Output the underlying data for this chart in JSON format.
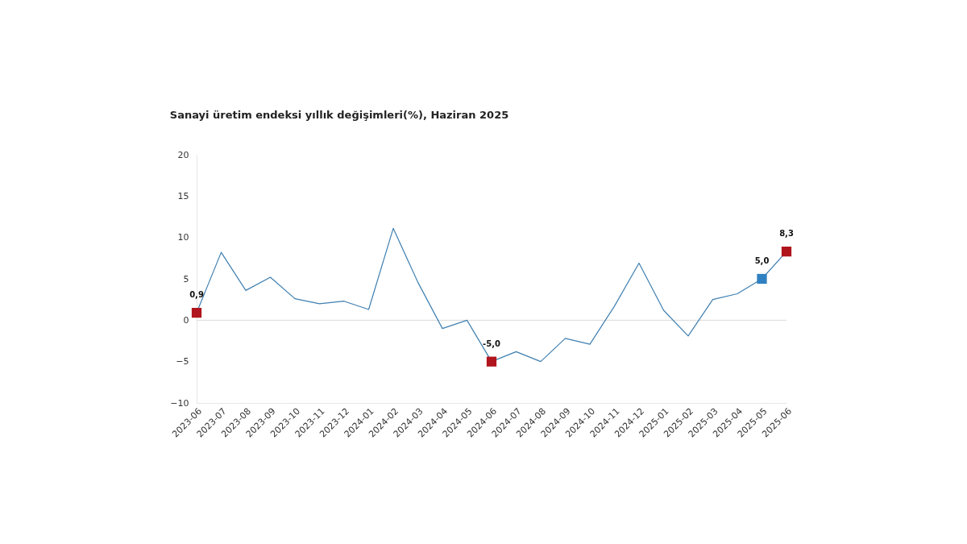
{
  "chart_data": {
    "type": "line",
    "title": "Sanayi üretim endeksi yıllık değişimleri(%), Haziran 2025",
    "categories": [
      "2023-06",
      "2023-07",
      "2023-08",
      "2023-09",
      "2023-10",
      "2023-11",
      "2023-12",
      "2024-01",
      "2024-02",
      "2024-03",
      "2024-04",
      "2024-05",
      "2024-06",
      "2024-07",
      "2024-08",
      "2024-09",
      "2024-10",
      "2024-11",
      "2024-12",
      "2025-01",
      "2025-02",
      "2025-03",
      "2025-04",
      "2025-05",
      "2025-06"
    ],
    "series": [
      {
        "color": "#3f7fb0",
        "marker": "none",
        "values": [
          0.9,
          8.2,
          3.6,
          5.2,
          2.6,
          2.0,
          2.3,
          1.3,
          11.1,
          4.6,
          -1.0,
          0.0,
          -5.0,
          -3.8,
          -5.0,
          -2.2,
          -2.9,
          1.7,
          6.9,
          1.2,
          -1.9,
          2.5,
          3.2,
          5.0,
          8.3
        ]
      },
      {
        "type": "scatter",
        "marker": "square",
        "values": [
          0.9,
          null,
          null,
          null,
          null,
          null,
          null,
          null,
          null,
          null,
          null,
          null,
          -5.0,
          null,
          null,
          null,
          null,
          null,
          null,
          null,
          null,
          null,
          null,
          5.0,
          8.3
        ],
        "colors": [
          "#b0141c",
          null,
          null,
          null,
          null,
          null,
          null,
          null,
          null,
          null,
          null,
          null,
          "#b0141c",
          null,
          null,
          null,
          null,
          null,
          null,
          null,
          null,
          null,
          null,
          "#2f80c0",
          "#b0141c"
        ],
        "value_labels": [
          "0,9",
          null,
          null,
          null,
          null,
          null,
          null,
          null,
          null,
          null,
          null,
          null,
          "-5,0",
          null,
          null,
          null,
          null,
          null,
          null,
          null,
          null,
          null,
          null,
          "5,0",
          "8,3"
        ]
      }
    ],
    "ylim": [
      -10,
      20
    ],
    "yticks": [
      -10,
      -5,
      0,
      5,
      10,
      15,
      20
    ],
    "grid": false,
    "ref_lines": [
      {
        "axis": "y",
        "value": 0,
        "color": "#d9d9d9"
      }
    ]
  }
}
